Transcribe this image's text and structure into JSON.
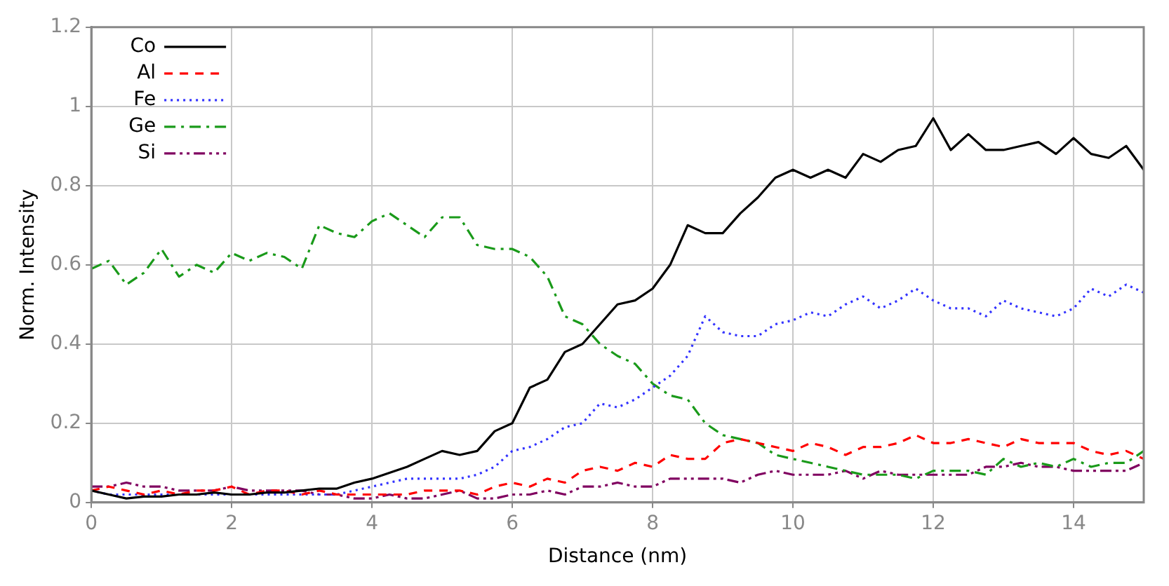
{
  "chart_data": {
    "type": "line",
    "xlabel": "Distance (nm)",
    "ylabel": "Norm. Intensity",
    "x": [
      0,
      0.25,
      0.5,
      0.75,
      1,
      1.25,
      1.5,
      1.75,
      2,
      2.25,
      2.5,
      2.75,
      3,
      3.25,
      3.5,
      3.75,
      4,
      4.25,
      4.5,
      4.75,
      5,
      5.25,
      5.5,
      5.75,
      6,
      6.25,
      6.5,
      6.75,
      7,
      7.25,
      7.5,
      7.75,
      8,
      8.25,
      8.5,
      8.75,
      9,
      9.25,
      9.5,
      9.75,
      10,
      10.25,
      10.5,
      10.75,
      11,
      11.25,
      11.5,
      11.75,
      12,
      12.25,
      12.5,
      12.75,
      13,
      13.25,
      13.5,
      13.75,
      14,
      14.25,
      14.5,
      14.75,
      15
    ],
    "xlim": [
      0,
      15
    ],
    "xticks": [
      0,
      2,
      4,
      6,
      8,
      10,
      12,
      14
    ],
    "ylim": [
      0,
      1.2
    ],
    "yticks": [
      0,
      0.2,
      0.4,
      0.6,
      0.8,
      1,
      1.2
    ],
    "grid": true,
    "legend": "top left",
    "marker": "none",
    "series": [
      {
        "name": "Co",
        "color": "#000000",
        "line_style": "solid",
        "values": [
          0.03,
          0.02,
          0.01,
          0.015,
          0.015,
          0.02,
          0.02,
          0.025,
          0.02,
          0.02,
          0.025,
          0.025,
          0.03,
          0.035,
          0.035,
          0.05,
          0.06,
          0.075,
          0.09,
          0.11,
          0.13,
          0.12,
          0.13,
          0.18,
          0.2,
          0.29,
          0.31,
          0.38,
          0.4,
          0.45,
          0.5,
          0.51,
          0.54,
          0.6,
          0.7,
          0.68,
          0.68,
          0.73,
          0.77,
          0.82,
          0.84,
          0.82,
          0.84,
          0.82,
          0.88,
          0.86,
          0.89,
          0.9,
          0.97,
          0.89,
          0.93,
          0.89,
          0.89,
          0.9,
          0.91,
          0.88,
          0.92,
          0.88,
          0.87,
          0.9,
          0.84
        ]
      },
      {
        "name": "Al",
        "color": "#ff0000",
        "line_style": "dashed",
        "values": [
          0.03,
          0.04,
          0.03,
          0.02,
          0.03,
          0.02,
          0.03,
          0.03,
          0.04,
          0.02,
          0.03,
          0.03,
          0.02,
          0.03,
          0.02,
          0.02,
          0.02,
          0.02,
          0.02,
          0.03,
          0.03,
          0.03,
          0.02,
          0.04,
          0.05,
          0.04,
          0.06,
          0.05,
          0.08,
          0.09,
          0.08,
          0.1,
          0.09,
          0.12,
          0.11,
          0.11,
          0.15,
          0.16,
          0.15,
          0.14,
          0.13,
          0.15,
          0.14,
          0.12,
          0.14,
          0.14,
          0.15,
          0.17,
          0.15,
          0.15,
          0.16,
          0.15,
          0.14,
          0.16,
          0.15,
          0.15,
          0.15,
          0.13,
          0.12,
          0.13,
          0.11
        ]
      },
      {
        "name": "Fe",
        "color": "#3333ff",
        "line_style": "dotted",
        "values": [
          0.03,
          0.02,
          0.02,
          0.02,
          0.02,
          0.02,
          0.02,
          0.02,
          0.02,
          0.02,
          0.02,
          0.02,
          0.02,
          0.02,
          0.02,
          0.03,
          0.04,
          0.05,
          0.06,
          0.06,
          0.06,
          0.06,
          0.07,
          0.09,
          0.13,
          0.14,
          0.16,
          0.19,
          0.2,
          0.25,
          0.24,
          0.26,
          0.29,
          0.32,
          0.37,
          0.47,
          0.43,
          0.42,
          0.42,
          0.45,
          0.46,
          0.48,
          0.47,
          0.5,
          0.52,
          0.49,
          0.51,
          0.54,
          0.51,
          0.49,
          0.49,
          0.47,
          0.51,
          0.49,
          0.48,
          0.47,
          0.49,
          0.54,
          0.52,
          0.55,
          0.53
        ]
      },
      {
        "name": "Ge",
        "color": "#1a9a1a",
        "line_style": "dashdot",
        "values": [
          0.59,
          0.61,
          0.55,
          0.58,
          0.64,
          0.57,
          0.6,
          0.58,
          0.63,
          0.61,
          0.63,
          0.62,
          0.59,
          0.7,
          0.68,
          0.67,
          0.71,
          0.73,
          0.7,
          0.67,
          0.72,
          0.72,
          0.65,
          0.64,
          0.64,
          0.62,
          0.57,
          0.47,
          0.45,
          0.4,
          0.37,
          0.35,
          0.3,
          0.27,
          0.26,
          0.2,
          0.17,
          0.16,
          0.15,
          0.12,
          0.11,
          0.1,
          0.09,
          0.08,
          0.07,
          0.07,
          0.07,
          0.06,
          0.08,
          0.08,
          0.08,
          0.07,
          0.11,
          0.09,
          0.1,
          0.09,
          0.11,
          0.09,
          0.1,
          0.1,
          0.13
        ]
      },
      {
        "name": "Si",
        "color": "#800060",
        "line_style": "dashdotdot",
        "values": [
          0.04,
          0.04,
          0.05,
          0.04,
          0.04,
          0.03,
          0.03,
          0.03,
          0.04,
          0.03,
          0.03,
          0.03,
          0.03,
          0.02,
          0.02,
          0.01,
          0.01,
          0.02,
          0.01,
          0.01,
          0.02,
          0.03,
          0.01,
          0.01,
          0.02,
          0.02,
          0.03,
          0.02,
          0.04,
          0.04,
          0.05,
          0.04,
          0.04,
          0.06,
          0.06,
          0.06,
          0.06,
          0.05,
          0.07,
          0.08,
          0.07,
          0.07,
          0.07,
          0.08,
          0.06,
          0.08,
          0.07,
          0.07,
          0.07,
          0.07,
          0.07,
          0.09,
          0.09,
          0.1,
          0.09,
          0.09,
          0.08,
          0.08,
          0.08,
          0.08,
          0.1
        ]
      }
    ]
  }
}
